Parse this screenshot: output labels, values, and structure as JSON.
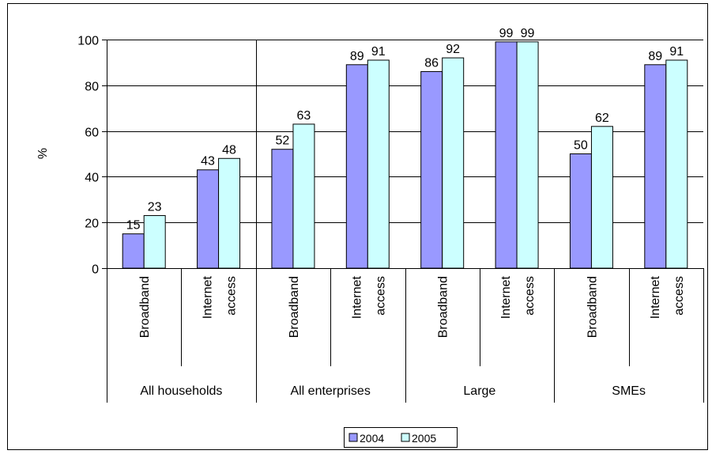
{
  "chart_data": {
    "type": "bar",
    "ylabel": "%",
    "ylim": [
      0,
      100
    ],
    "yticks": [
      "0",
      "20",
      "40",
      "60",
      "80",
      "100"
    ],
    "grid": true,
    "legend_placement": "bottom-center",
    "groups": [
      "All households",
      "All enterprises",
      "Large",
      "SMEs"
    ],
    "categories": [
      {
        "label": "Broadband",
        "group": 0
      },
      {
        "label": "Internet access",
        "group": 0
      },
      {
        "label": "Broadband",
        "group": 1
      },
      {
        "label": "Internet access",
        "group": 1
      },
      {
        "label": "Broadband",
        "group": 2
      },
      {
        "label": "Internet access",
        "group": 2
      },
      {
        "label": "Broadband",
        "group": 3
      },
      {
        "label": "Internet access",
        "group": 3
      }
    ],
    "series": [
      {
        "name": "2004",
        "color": "#9999ff",
        "values": [
          15,
          43,
          52,
          89,
          86,
          99,
          50,
          89
        ]
      },
      {
        "name": "2005",
        "color": "#ccffff",
        "values": [
          23,
          48,
          63,
          91,
          92,
          99,
          62,
          91
        ]
      }
    ]
  }
}
